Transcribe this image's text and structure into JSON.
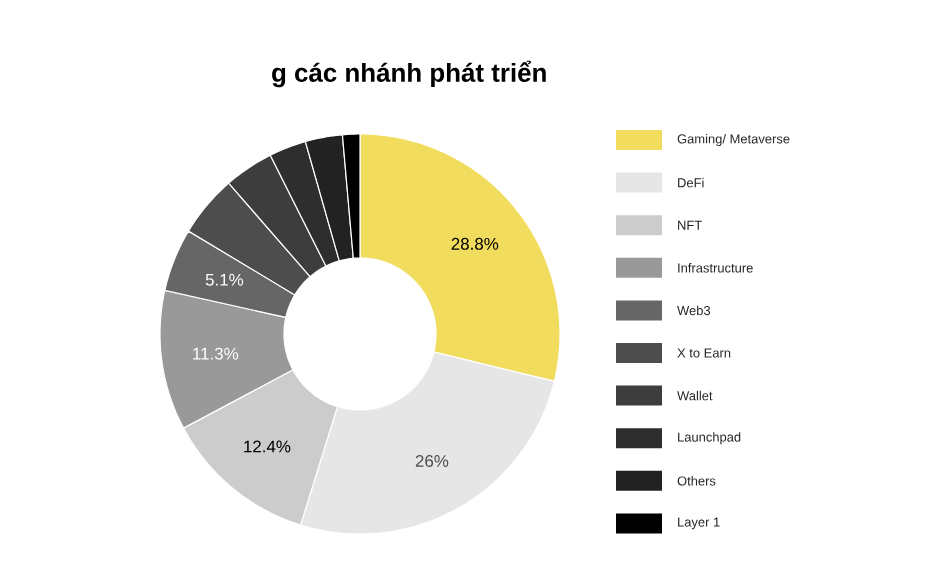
{
  "chart_data": {
    "type": "donut",
    "title": "g các nhánh phát triển",
    "legend": "right",
    "categories": [
      "Gaming/ Metaverse",
      "DeFi",
      "NFT",
      "Infrastructure",
      "Web3",
      "X to Earn",
      "Wallet",
      "Launchpad",
      "Others",
      "Layer 1"
    ],
    "values": [
      28.8,
      26,
      12.4,
      11.3,
      5.1,
      5.0,
      4.0,
      3.0,
      3.0,
      1.4
    ],
    "colors": [
      "#f2dc5d",
      "#e6e6e6",
      "#cccccc",
      "#999999",
      "#666666",
      "#4d4d4d",
      "#3d3d3d",
      "#2e2e2e",
      "#222222",
      "#000000"
    ],
    "value_labels": [
      "28.8%",
      "26%",
      "12.4%",
      "11.3%",
      "5.1%",
      null,
      null,
      null,
      null,
      null
    ]
  }
}
